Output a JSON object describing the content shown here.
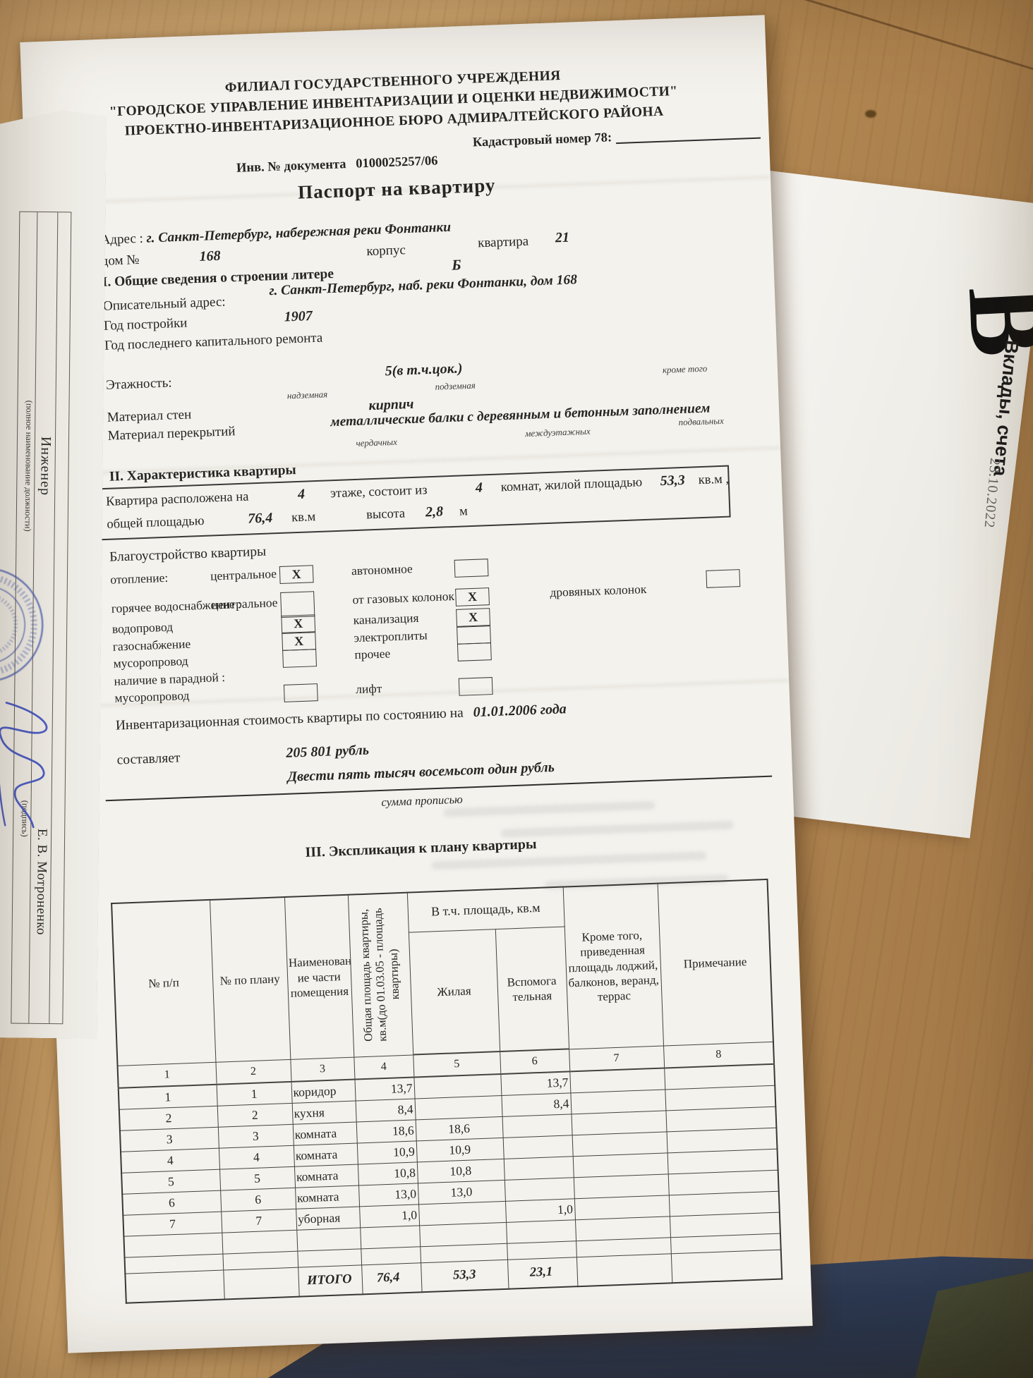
{
  "side_papers": {
    "left": {
      "role": "Инженер",
      "role_hint": "(полное наименование должности)",
      "sign_hint": "(подпись)",
      "signer_name": "Е. В. Мотроненко"
    },
    "right": {
      "big_letter": "В",
      "caption": "Вклады, счета",
      "date": "23.10.2022"
    }
  },
  "doc": {
    "org_line1": "ФИЛИАЛ  ГОСУДАРСТВЕННОГО  УЧРЕЖДЕНИЯ",
    "org_line2": "\"ГОРОДСКОЕ  УПРАВЛЕНИЕ  ИНВЕНТАРИЗАЦИИ  И  ОЦЕНКИ  НЕДВИЖИМОСТИ\"",
    "org_line3": "ПРОЕКТНО-ИНВЕНТАРИЗАЦИОННОЕ  БЮРО  АДМИРАЛТЕЙСКОГО  РАЙОНА",
    "inv_doc_label": "Инв. № документа",
    "inv_doc_value": "0100025257/06",
    "cadastral_label": "Кадастровый номер  78:",
    "title": "Паспорт  на  квартиру",
    "address_label": "Адрес : ",
    "address_value": "г. Санкт-Петербург, набережная реки Фонтанки",
    "house_label": "дом №",
    "house_value": "168",
    "korpus_label": "корпус",
    "flat_label": "квартира",
    "flat_value": "21",
    "section1_title": "I. Общие сведения о строении литере",
    "litera_value": "Б",
    "descr_addr_label": "Описательный адрес:",
    "descr_addr_value": "г. Санкт-Петербург,  наб. реки Фонтанки, дом 168",
    "build_year_label": "Год постройки",
    "build_year_value": "1907",
    "overhaul_label": "Год последнего капитального ремонта",
    "floors_label": "Этажность:",
    "floors_value": "5(в т.ч.цок.)",
    "floors_sub_above": "надземная",
    "floors_sub_below": "подземная",
    "floors_sub_other": "кроме того",
    "walls_label": "Материал стен",
    "walls_value": "кирпич",
    "slabs_label": "Материал перекрытий",
    "slabs_value": "металлические балки с деревянным и бетонным  заполнением",
    "slabs_sub1": "чердачных",
    "slabs_sub2": "междуэтажных",
    "slabs_sub3": "подвальных",
    "section2_title": "II. Характеристика квартиры",
    "char": {
      "p1": "Квартира расположена на",
      "v_floor": "4",
      "p2": "этаже,  состоит из",
      "v_rooms": "4",
      "p3": "комнат,  жилой площадью",
      "v_living": "53,3",
      "p4": "кв.м ,",
      "p5": "общей площадью",
      "v_total": "76,4",
      "p6": "кв.м",
      "p7": "высота",
      "v_height": "2,8",
      "p8": "м"
    },
    "amenities_title": "Благоустройство квартиры",
    "amenities": {
      "r1": {
        "c1": "отопление:",
        "c2": "центральное",
        "b1": "X",
        "c3": "автономное",
        "b2": ""
      },
      "r2": {
        "c1": "горячее водоснабжение :",
        "c2": "центральное",
        "b1": "",
        "c3": "от газовых колонок",
        "b2": "X",
        "c4": "дровяных колонок",
        "b3": ""
      },
      "r3": {
        "c1": "водопровод",
        "b1": "X",
        "c3": "канализация",
        "b2": "X"
      },
      "r4": {
        "c1": "газоснабжение",
        "b1": "X",
        "c3": "электроплиты",
        "b2": ""
      },
      "r5": {
        "c1": "мусоропровод",
        "b1": "",
        "c3": "прочее",
        "b2": ""
      },
      "r6": {
        "c1": "наличие в парадной :"
      },
      "r7": {
        "c1": "мусоропровод",
        "b1": "",
        "c3": "лифт",
        "b2": ""
      }
    },
    "inventory_label": "Инвентаризационная стоимость квартиры по состоянию на",
    "inventory_date": "01.01.2006   года",
    "amount_label": "составляет",
    "amount_value": "205 801 рубль",
    "amount_words": "Двести пять тысяч восемьсот один рубль",
    "amount_words_hint": "сумма прописью",
    "section3_title": "III. Экспликация к плану квартиры",
    "table": {
      "group_header": "В т.ч. площадь, кв.м",
      "h1": "№ п/п",
      "h2": "№ по плану",
      "h3": "Наименован ие части помещения",
      "h4": "Общая площадь квартиры, кв.м(до 01.03.05 - площадь квартиры)",
      "h5": "Жилая",
      "h6": "Вспомога тельная",
      "h7": "Кроме того, приведенная площадь лоджий, балконов, веранд, террас",
      "h8": "Примечание",
      "numbers": [
        "1",
        "2",
        "3",
        "4",
        "5",
        "6",
        "7",
        "8"
      ],
      "rows": [
        [
          "1",
          "1",
          "коридор",
          "13,7",
          "",
          "13,7",
          "",
          ""
        ],
        [
          "2",
          "2",
          "кухня",
          "8,4",
          "",
          "8,4",
          "",
          ""
        ],
        [
          "3",
          "3",
          "комната",
          "18,6",
          "18,6",
          "",
          "",
          ""
        ],
        [
          "4",
          "4",
          "комната",
          "10,9",
          "10,9",
          "",
          "",
          ""
        ],
        [
          "5",
          "5",
          "комната",
          "10,8",
          "10,8",
          "",
          "",
          ""
        ],
        [
          "6",
          "6",
          "комната",
          "13,0",
          "13,0",
          "",
          "",
          ""
        ],
        [
          "7",
          "7",
          "уборная",
          "1,0",
          "",
          "1,0",
          "",
          ""
        ],
        [
          "",
          "",
          "",
          "",
          "",
          "",
          "",
          ""
        ],
        [
          "",
          "",
          "",
          "",
          "",
          "",
          "",
          ""
        ]
      ],
      "total_row": [
        "",
        "",
        "ИТОГО",
        "76,4",
        "53,3",
        "23,1",
        "",
        ""
      ]
    }
  }
}
